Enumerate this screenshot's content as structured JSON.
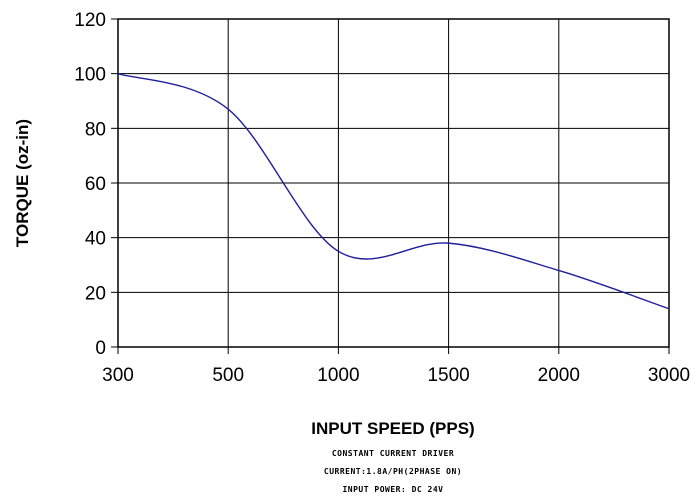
{
  "chart_data": {
    "type": "line",
    "xlabel": "INPUT SPEED (PPS)",
    "ylabel": "TORQUE (oz-in)",
    "x_ticks": [
      "300",
      "500",
      "1000",
      "1500",
      "2000",
      "3000"
    ],
    "y_ticks": [
      "0",
      "20",
      "40",
      "60",
      "80",
      "100",
      "120"
    ],
    "ylim": [
      0,
      120
    ],
    "grid": true,
    "x_scale": "categorical",
    "series": [
      {
        "name": "",
        "color": "#1f1f9e",
        "x": [
          "300",
          "500",
          "1000",
          "1500",
          "2000",
          "3000"
        ],
        "y": [
          100,
          87,
          35,
          38,
          28,
          14
        ]
      }
    ],
    "notes": [
      "CONSTANT CURRENT DRIVER",
      "CURRENT:1.8A/PH(2PHASE ON)",
      "INPUT POWER: DC 24V"
    ]
  }
}
